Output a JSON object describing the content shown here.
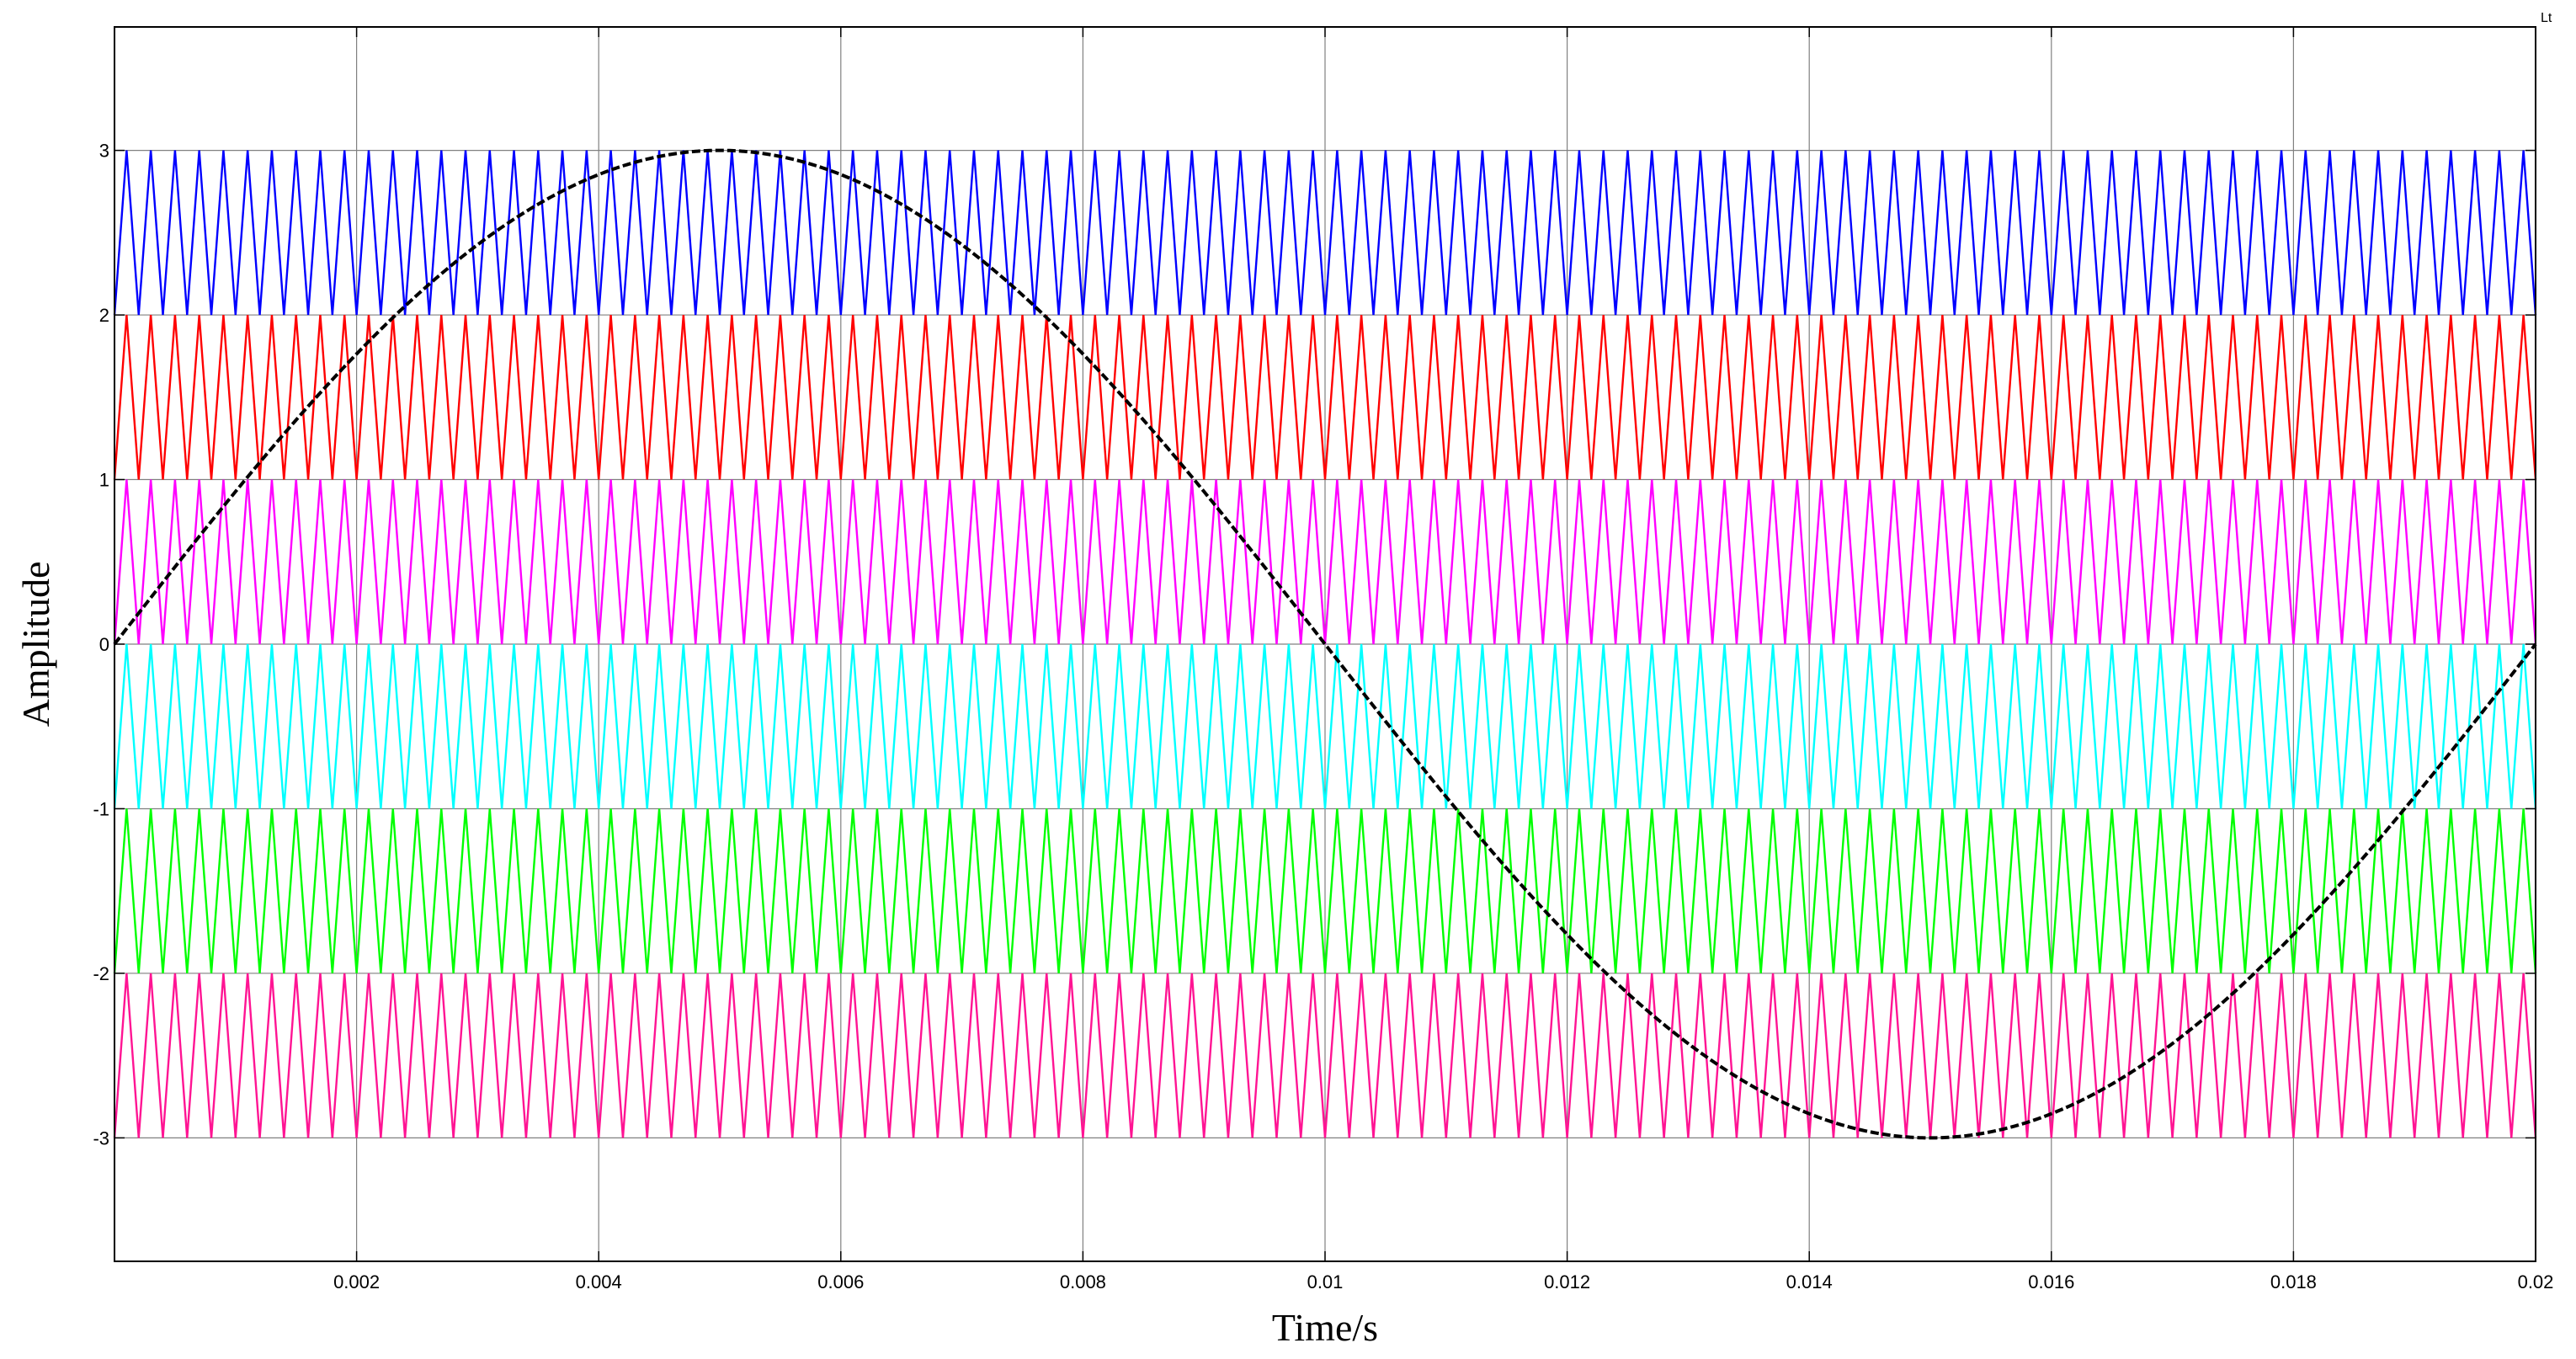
{
  "chart_data": {
    "type": "line",
    "title": "",
    "xlabel": "Time/s",
    "ylabel": "Amplitude",
    "corner_mark": "Lt",
    "xlim": [
      0,
      0.02
    ],
    "ylim": [
      -3.75,
      3.75
    ],
    "grid": true,
    "x_ticks": [
      0.002,
      0.004,
      0.006,
      0.008,
      0.01,
      0.012,
      0.014,
      0.016,
      0.018,
      0.02
    ],
    "x_tick_labels": [
      "0.002",
      "0.004",
      "0.006",
      "0.008",
      "0.01",
      "0.012",
      "0.014",
      "0.016",
      "0.018",
      "0.02"
    ],
    "y_ticks": [
      3,
      2,
      1,
      0,
      -1,
      -2,
      -3
    ],
    "y_tick_labels": [
      "3",
      "2",
      "1",
      "0",
      "-1",
      "-2",
      "-3"
    ],
    "carriers": {
      "type": "triangle",
      "periods_in_window": 100,
      "series": [
        {
          "band": [
            2,
            3
          ],
          "color": "#0000ff"
        },
        {
          "band": [
            1,
            2
          ],
          "color": "#ff0000"
        },
        {
          "band": [
            0,
            1
          ],
          "color": "#ff00ff"
        },
        {
          "band": [
            -1,
            0
          ],
          "color": "#00ffff"
        },
        {
          "band": [
            -2,
            -1
          ],
          "color": "#00ff00"
        },
        {
          "band": [
            -3,
            -2
          ],
          "color": "#ff1493"
        }
      ]
    },
    "reference": {
      "type": "sine",
      "amplitude": 3,
      "frequency_hz": 50,
      "color": "#000000"
    }
  }
}
